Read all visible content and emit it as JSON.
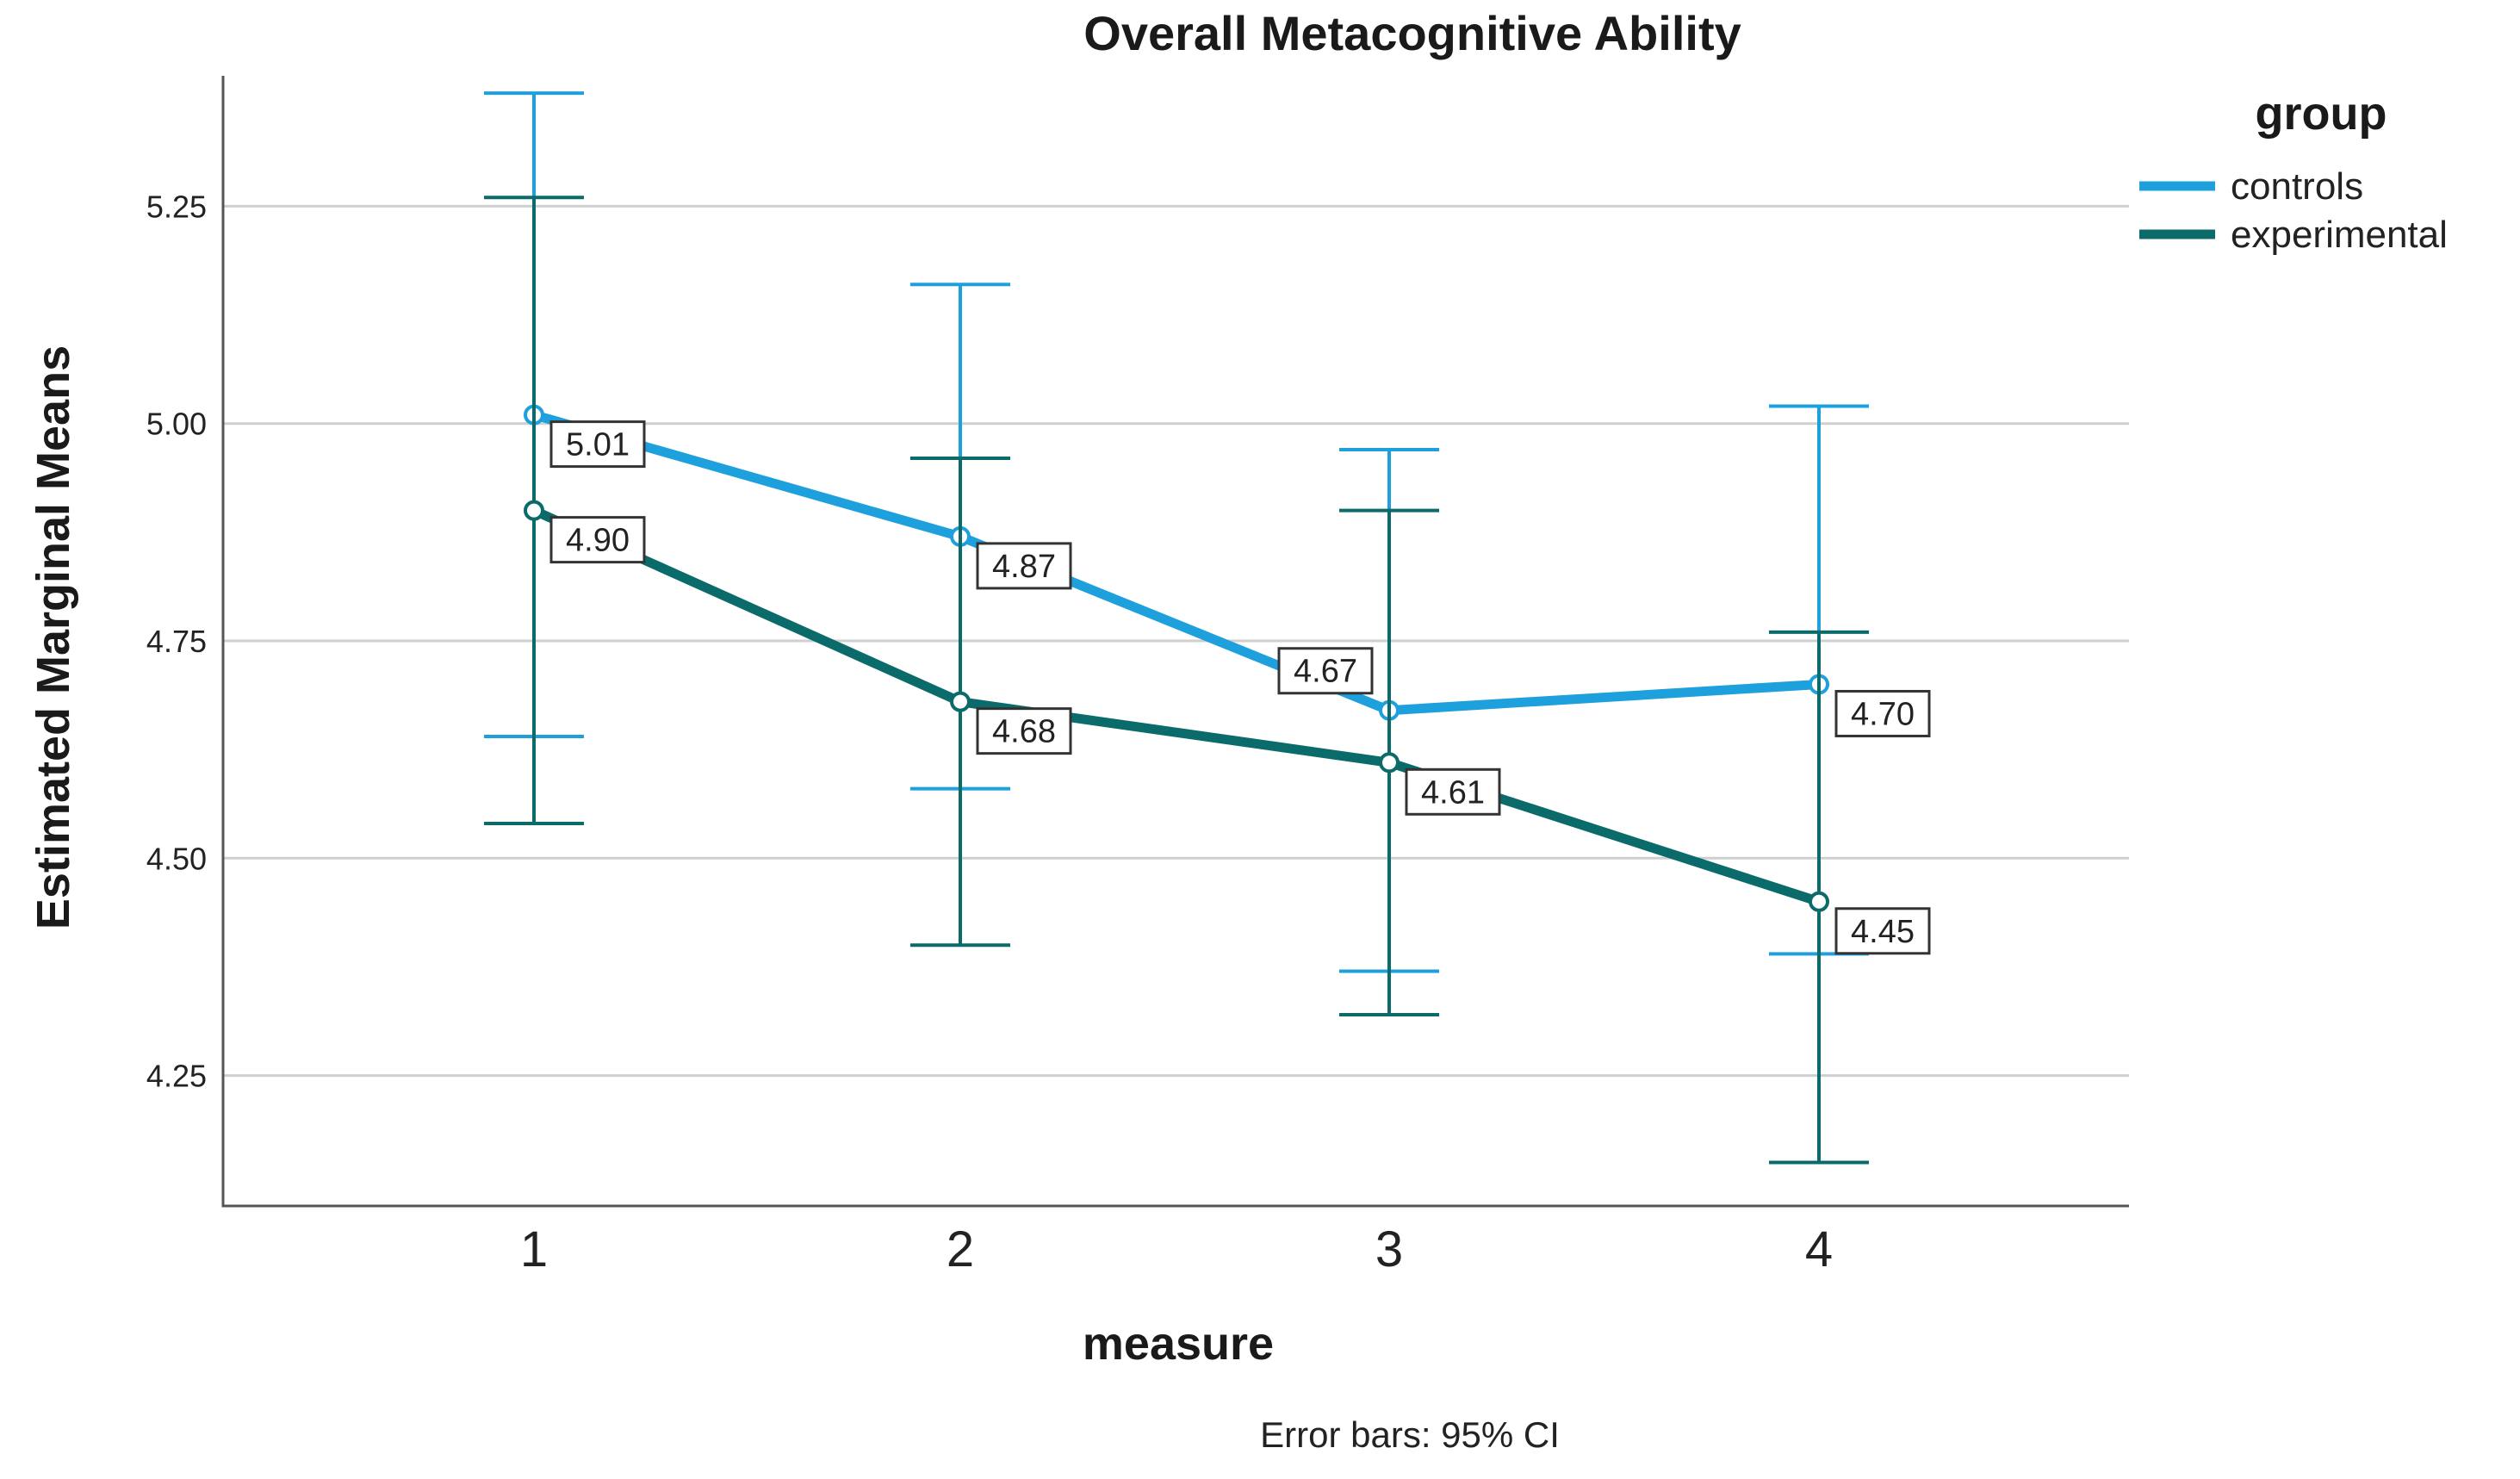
{
  "chart_data": {
    "type": "line",
    "title": "Overall Metacognitive Ability",
    "xlabel": "measure",
    "ylabel": "Estimated Marginal Means",
    "footnote": "Error bars: 95% CI",
    "categories": [
      "1",
      "2",
      "3",
      "4"
    ],
    "ylim": [
      4.1,
      5.4
    ],
    "yticks": [
      4.25,
      4.5,
      4.75,
      5.0,
      5.25
    ],
    "ytick_labels": [
      "4.25",
      "4.50",
      "4.75",
      "5.00",
      "5.25"
    ],
    "grid": true,
    "legend": {
      "title": "group",
      "placement": "top-right"
    },
    "series": [
      {
        "name": "controls",
        "color": "#1ea0dd",
        "values": [
          5.01,
          4.87,
          4.67,
          4.7
        ],
        "labels": [
          "5.01",
          "4.87",
          "4.67",
          "4.70"
        ],
        "ci_lower": [
          4.64,
          4.58,
          4.37,
          4.39
        ],
        "ci_upper": [
          5.38,
          5.16,
          4.97,
          5.02
        ]
      },
      {
        "name": "experimental",
        "color": "#0b6b6b",
        "values": [
          4.9,
          4.68,
          4.61,
          4.45
        ],
        "labels": [
          "4.90",
          "4.68",
          "4.61",
          "4.45"
        ],
        "ci_lower": [
          4.54,
          4.4,
          4.32,
          4.15
        ],
        "ci_upper": [
          5.26,
          4.96,
          4.9,
          4.76
        ]
      }
    ]
  }
}
